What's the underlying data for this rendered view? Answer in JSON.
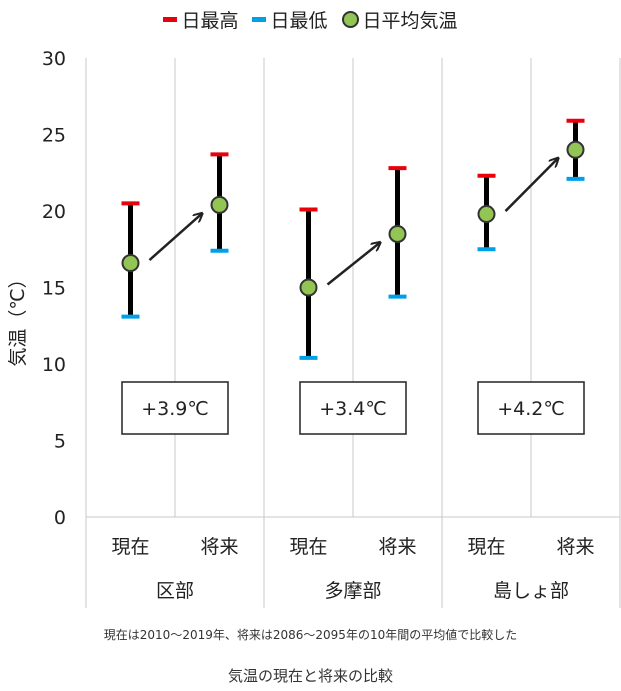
{
  "legend": {
    "max_label": "日最高",
    "min_label": "日最低",
    "avg_label": "日平均気温"
  },
  "colors": {
    "max": "#e8000b",
    "min": "#00a0e9",
    "avg": "#92c553",
    "bar": "#000000"
  },
  "note": "現在は2010～2019年、将来は2086～2095年の10年間の平均値で比較した",
  "caption": "気温の現在と将来の比較",
  "chart_data": {
    "type": "errorbar",
    "ylabel": "気温（℃）",
    "ylim": [
      0,
      30
    ],
    "yticks": [
      0,
      5,
      10,
      15,
      20,
      25,
      30
    ],
    "grid": "vertical",
    "legend_position": "top",
    "groups": [
      {
        "name": "区部",
        "increase_label": "+3.9℃",
        "points": [
          {
            "period": "現在",
            "max": 20.5,
            "min": 13.1,
            "avg": 16.6
          },
          {
            "period": "将来",
            "max": 23.7,
            "min": 17.4,
            "avg": 20.4
          }
        ]
      },
      {
        "name": "多摩部",
        "increase_label": "+3.4℃",
        "points": [
          {
            "period": "現在",
            "max": 20.1,
            "min": 10.4,
            "avg": 15.0
          },
          {
            "period": "将来",
            "max": 22.8,
            "min": 14.4,
            "avg": 18.5
          }
        ]
      },
      {
        "name": "島しょ部",
        "increase_label": "+4.2℃",
        "points": [
          {
            "period": "現在",
            "max": 22.3,
            "min": 17.5,
            "avg": 19.8
          },
          {
            "period": "将来",
            "max": 25.9,
            "min": 22.1,
            "avg": 24.0
          }
        ]
      }
    ]
  }
}
